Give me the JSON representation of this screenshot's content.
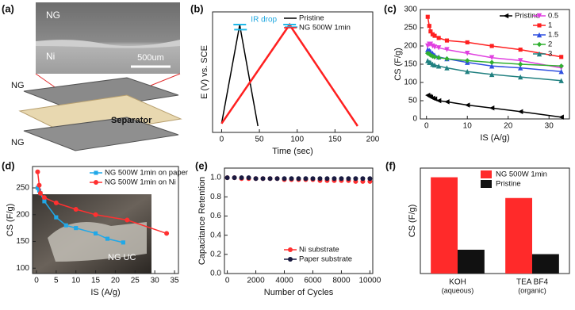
{
  "illustration": {
    "panel": "(a)",
    "sem_labels": [
      "NG",
      "Ni"
    ],
    "scale_bar": "500um",
    "stack_labels": [
      "NG",
      "Separator",
      "NG"
    ]
  },
  "chart_data": [
    {
      "panel": "(b)",
      "type": "line",
      "xlabel": "Time (sec)",
      "ylabel": "E (V) vs. SCE",
      "xlim": [
        -12,
        200
      ],
      "xticks": [
        0,
        50,
        100,
        150,
        200
      ],
      "ylim": [
        -0.05,
        0.9
      ],
      "legend": "upper right",
      "annotation": "IR drop",
      "series": [
        {
          "name": "Pristine",
          "color": "#000000",
          "marker": "none",
          "x": [
            0,
            24,
            25,
            48
          ],
          "values": [
            0.02,
            0.8,
            0.76,
            0
          ]
        },
        {
          "name": "NG 500W 1min",
          "color": "#ff2020",
          "marker": "none",
          "x": [
            0,
            90,
            92,
            180
          ],
          "values": [
            0.02,
            0.8,
            0.78,
            0
          ]
        }
      ]
    },
    {
      "panel": "(c)",
      "type": "line",
      "xlabel": "IS (A/g)",
      "ylabel": "CS (F/g)",
      "xlim": [
        -1.5,
        35
      ],
      "xticks": [
        0,
        10,
        20,
        30
      ],
      "ylim": [
        0,
        300
      ],
      "yticks": [
        0,
        50,
        100,
        150,
        200,
        250,
        300
      ],
      "legend": "upper right",
      "x": [
        0.3,
        0.7,
        1,
        1.5,
        2,
        3,
        5,
        10,
        16,
        23,
        33
      ],
      "series": [
        {
          "name": "Pristine",
          "color": "#000000",
          "marker": "triangle-left",
          "values": [
            65,
            62,
            60,
            57,
            55,
            50,
            47,
            38,
            30,
            20,
            5
          ]
        },
        {
          "name": "0.5",
          "color": "#e040e0",
          "marker": "triangle-down",
          "values": [
            200,
            205,
            205,
            200,
            197,
            195,
            190,
            180,
            168,
            160,
            140
          ]
        },
        {
          "name": "1",
          "color": "#ff2020",
          "marker": "square",
          "values": [
            280,
            255,
            240,
            232,
            228,
            222,
            215,
            210,
            200,
            190,
            170
          ]
        },
        {
          "name": "1.5",
          "color": "#3050e0",
          "marker": "triangle-up",
          "values": [
            190,
            188,
            185,
            180,
            175,
            170,
            165,
            155,
            145,
            140,
            130
          ]
        },
        {
          "name": "2",
          "color": "#30b030",
          "marker": "diamond",
          "values": [
            180,
            178,
            175,
            172,
            170,
            168,
            165,
            160,
            155,
            150,
            145
          ]
        },
        {
          "name": "3",
          "color": "#208080",
          "marker": "triangle-up",
          "values": [
            160,
            155,
            155,
            150,
            148,
            145,
            140,
            130,
            122,
            115,
            105
          ]
        }
      ]
    },
    {
      "panel": "(d)",
      "type": "line",
      "xlabel": "IS (A/g)",
      "ylabel": "CS (F/g)",
      "xlim": [
        -1,
        36
      ],
      "xticks": [
        0,
        5,
        10,
        15,
        20,
        25,
        30,
        35
      ],
      "ylim": [
        90,
        290
      ],
      "yticks": [
        100,
        150,
        200,
        250
      ],
      "legend": "upper right",
      "inset_label": "NG UC",
      "series": [
        {
          "name": "NG 500W 1min on paper",
          "color": "#20a8e8",
          "marker": "square",
          "x": [
            0.3,
            0.7,
            1,
            2,
            5,
            7.5,
            10,
            15,
            18,
            22
          ],
          "values": [
            250,
            245,
            240,
            225,
            195,
            180,
            175,
            165,
            155,
            148
          ]
        },
        {
          "name": "NG 500W 1min on Ni",
          "color": "#ff3030",
          "marker": "circle",
          "x": [
            0.3,
            0.7,
            1,
            2,
            5,
            10,
            15,
            23,
            33
          ],
          "values": [
            280,
            255,
            240,
            232,
            222,
            210,
            200,
            190,
            165
          ]
        }
      ]
    },
    {
      "panel": "(e)",
      "type": "scatter",
      "xlabel": "Number of Cycles",
      "ylabel": "Capacitance Retention",
      "xlim": [
        -200,
        10200
      ],
      "xticks": [
        0,
        2000,
        4000,
        6000,
        8000,
        10000
      ],
      "ylim": [
        0,
        1.1
      ],
      "yticks": [
        {
          "value": 0,
          "label": "0.0"
        },
        0.2,
        0.4,
        0.6,
        0.8,
        {
          "value": 1,
          "label": "1.0"
        }
      ],
      "legend": "lower right",
      "x": [
        0,
        500,
        1000,
        1500,
        2000,
        2500,
        3000,
        3500,
        4000,
        4500,
        5000,
        5500,
        6000,
        6500,
        7000,
        7500,
        8000,
        8500,
        9000,
        9500,
        10000
      ],
      "series": [
        {
          "name": "Ni substrate",
          "color": "#ff3030",
          "marker": "circle",
          "values": [
            1.0,
            1.0,
            0.99,
            0.99,
            0.99,
            0.99,
            0.99,
            0.99,
            0.98,
            0.98,
            0.98,
            0.98,
            0.98,
            0.97,
            0.97,
            0.97,
            0.97,
            0.97,
            0.96,
            0.96,
            0.96
          ]
        },
        {
          "name": "Paper substrate",
          "color": "#1a1a40",
          "marker": "circle",
          "values": [
            1.0,
            1.0,
            1.0,
            1.0,
            0.99,
            0.99,
            0.99,
            0.99,
            0.99,
            0.99,
            0.99,
            0.99,
            0.99,
            0.99,
            0.99,
            0.99,
            0.99,
            0.99,
            0.99,
            0.99,
            0.99
          ]
        }
      ]
    },
    {
      "panel": "(f)",
      "type": "bar",
      "ylabel": "CS (F/g)",
      "ylim": [
        0,
        310
      ],
      "legend": "upper right",
      "categories": [
        "KOH",
        "TEA BF4"
      ],
      "category_notes": [
        "(aqueous)",
        "(organic)"
      ],
      "series": [
        {
          "name": "NG 500W 1min",
          "color": "#ff2a2a",
          "values": [
            283,
            222
          ]
        },
        {
          "name": "Pristine",
          "color": "#111111",
          "values": [
            70,
            57
          ]
        }
      ]
    }
  ]
}
